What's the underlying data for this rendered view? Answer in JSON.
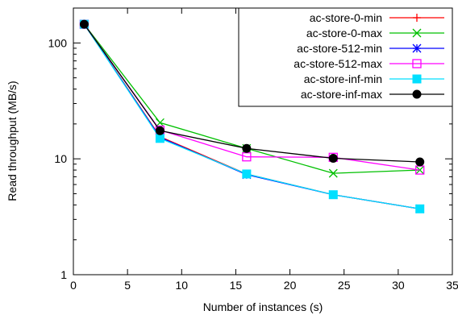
{
  "chart_data": {
    "type": "line",
    "title": "",
    "xlabel": "Number of instances (s)",
    "ylabel": "Read throughput (MB/s)",
    "xlim": [
      0,
      35
    ],
    "ylim": [
      1,
      200
    ],
    "yscale": "log",
    "xticks": [
      0,
      5,
      10,
      15,
      20,
      25,
      30,
      35
    ],
    "xtick_labels": [
      "0",
      "5",
      "10",
      "15",
      "20",
      "25",
      "30",
      "35"
    ],
    "yticks": [
      1,
      10,
      100
    ],
    "ytick_labels": [
      "1",
      "10",
      "100"
    ],
    "grid": false,
    "legend": "top-right",
    "x": [
      1,
      8,
      16,
      24,
      32
    ],
    "series": [
      {
        "name": "ac-store-0-min",
        "color": "#ff0000",
        "marker": "plus",
        "values": [
          145,
          15.5,
          7.4,
          4.9,
          3.7
        ]
      },
      {
        "name": "ac-store-0-max",
        "color": "#00c000",
        "marker": "cross",
        "values": [
          145,
          20.5,
          12.3,
          7.5,
          8.0
        ]
      },
      {
        "name": "ac-store-512-min",
        "color": "#0000ff",
        "marker": "star",
        "values": [
          145,
          15.3,
          7.3,
          4.9,
          3.7
        ]
      },
      {
        "name": "ac-store-512-max",
        "color": "#ff00ff",
        "marker": "open-square",
        "values": [
          145,
          17.7,
          10.4,
          10.3,
          8.0
        ]
      },
      {
        "name": "ac-store-inf-min",
        "color": "#00dfff",
        "marker": "filled-square",
        "values": [
          145,
          15.0,
          7.4,
          4.9,
          3.7
        ]
      },
      {
        "name": "ac-store-inf-max",
        "color": "#000000",
        "marker": "filled-circle",
        "values": [
          145,
          17.5,
          12.3,
          10.1,
          9.4
        ]
      }
    ]
  }
}
